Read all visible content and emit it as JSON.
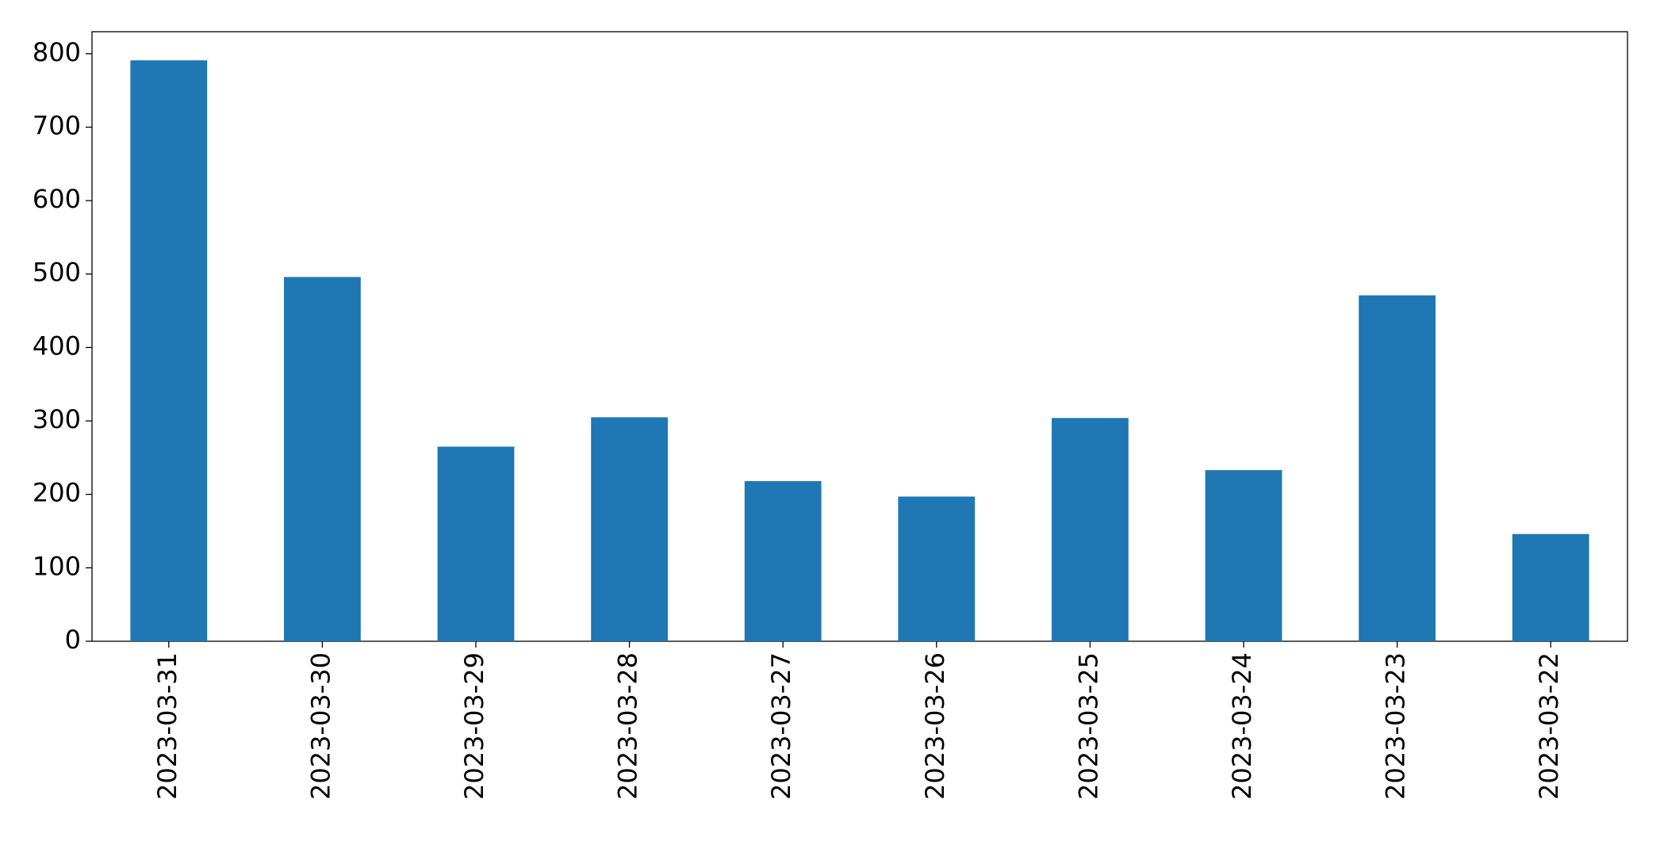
{
  "chart_data": {
    "type": "bar",
    "categories": [
      "2023-03-31",
      "2023-03-30",
      "2023-03-29",
      "2023-03-28",
      "2023-03-27",
      "2023-03-26",
      "2023-03-25",
      "2023-03-24",
      "2023-03-23",
      "2023-03-22"
    ],
    "values": [
      791,
      496,
      265,
      305,
      218,
      197,
      304,
      233,
      471,
      146
    ],
    "color": "#1f77b4",
    "ylim": [
      0,
      830
    ],
    "yticks": [
      0,
      100,
      200,
      300,
      400,
      500,
      600,
      700,
      800
    ],
    "grid": false
  }
}
